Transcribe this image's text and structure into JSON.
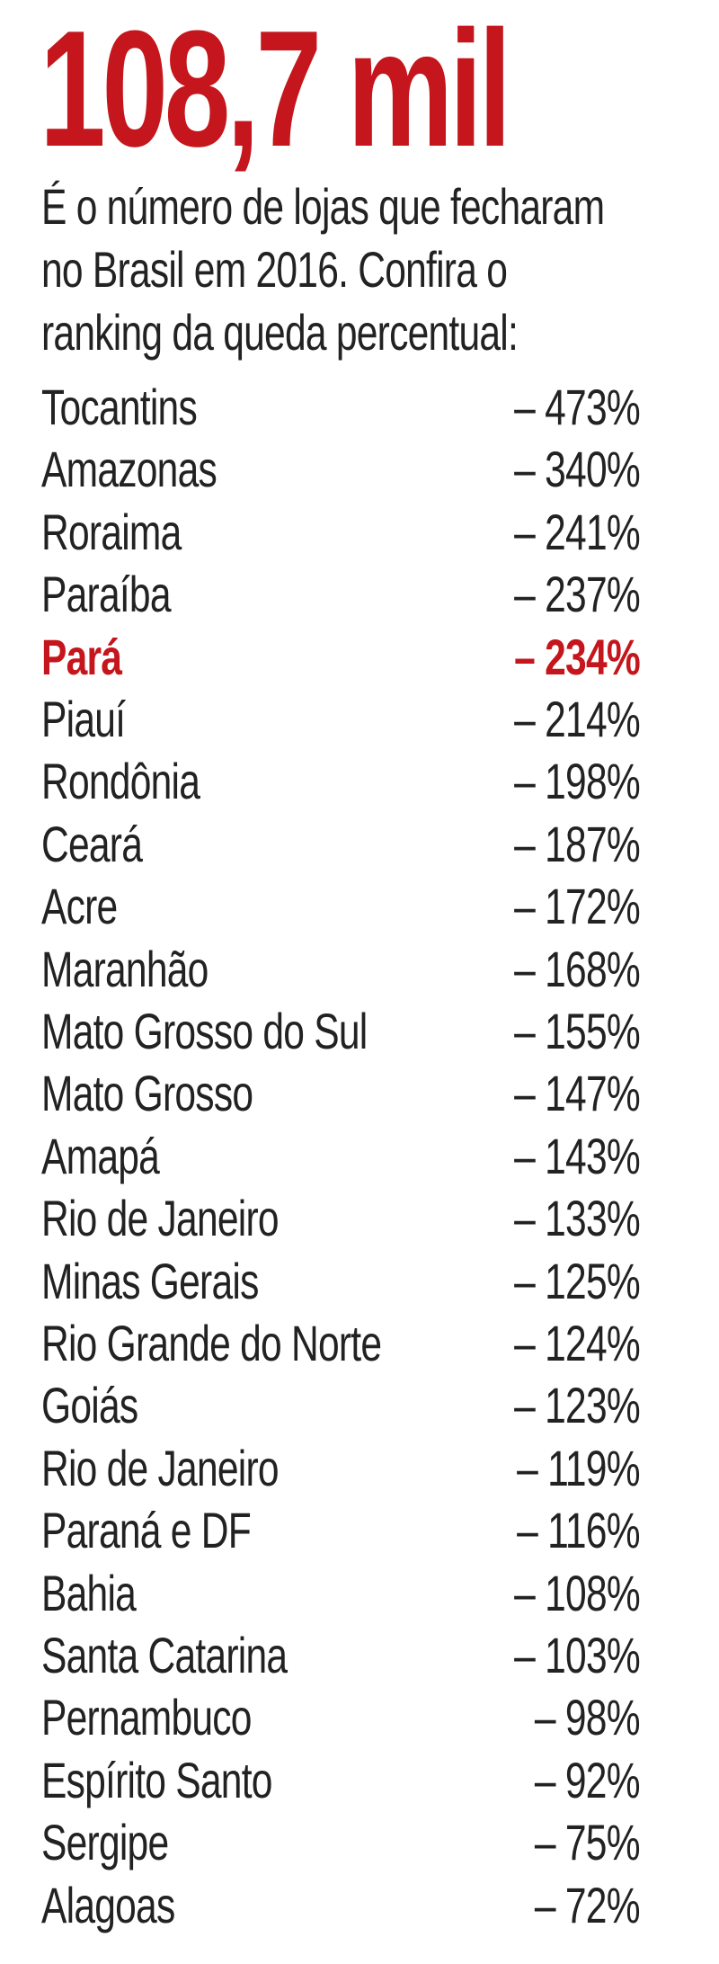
{
  "header": {
    "title": "108,7 mil",
    "subtitle": [
      "É o número de lojas que fecharam",
      "no Brasil em 2016. Confira o",
      "ranking da queda percentual:"
    ]
  },
  "table": {
    "rows": [
      [
        "Tocantins",
        "– 473%"
      ],
      [
        "Amazonas",
        "– 340%"
      ],
      [
        "Roraima",
        "– 241%"
      ],
      [
        "Paraíba",
        "– 237%"
      ],
      [
        "Pará",
        "– 234%"
      ],
      [
        "Piauí",
        "– 214%"
      ],
      [
        "Rondônia",
        "– 198%"
      ],
      [
        "Ceará",
        "– 187%"
      ],
      [
        "Acre",
        "– 172%"
      ],
      [
        "Maranhão",
        "– 168%"
      ],
      [
        "Mato Grosso do Sul",
        "– 155%"
      ],
      [
        "Mato Grosso",
        "– 147%"
      ],
      [
        "Amapá",
        "– 143%"
      ],
      [
        "Rio de Janeiro",
        "– 133%"
      ],
      [
        "Minas Gerais",
        "– 125%"
      ],
      [
        "Rio Grande do Norte",
        "– 124%"
      ],
      [
        "Goiás",
        "– 123%"
      ],
      [
        "Rio de Janeiro",
        "– 119%"
      ],
      [
        "Paraná e DF",
        "– 116%"
      ],
      [
        "Bahia",
        "– 108%"
      ],
      [
        "Santa Catarina",
        "– 103%"
      ],
      [
        "Pernambuco",
        "– 98%"
      ],
      [
        "Espírito Santo",
        "– 92%"
      ],
      [
        "Sergipe",
        "– 75%"
      ],
      [
        "Alagoas",
        "– 72%"
      ]
    ]
  }
}
